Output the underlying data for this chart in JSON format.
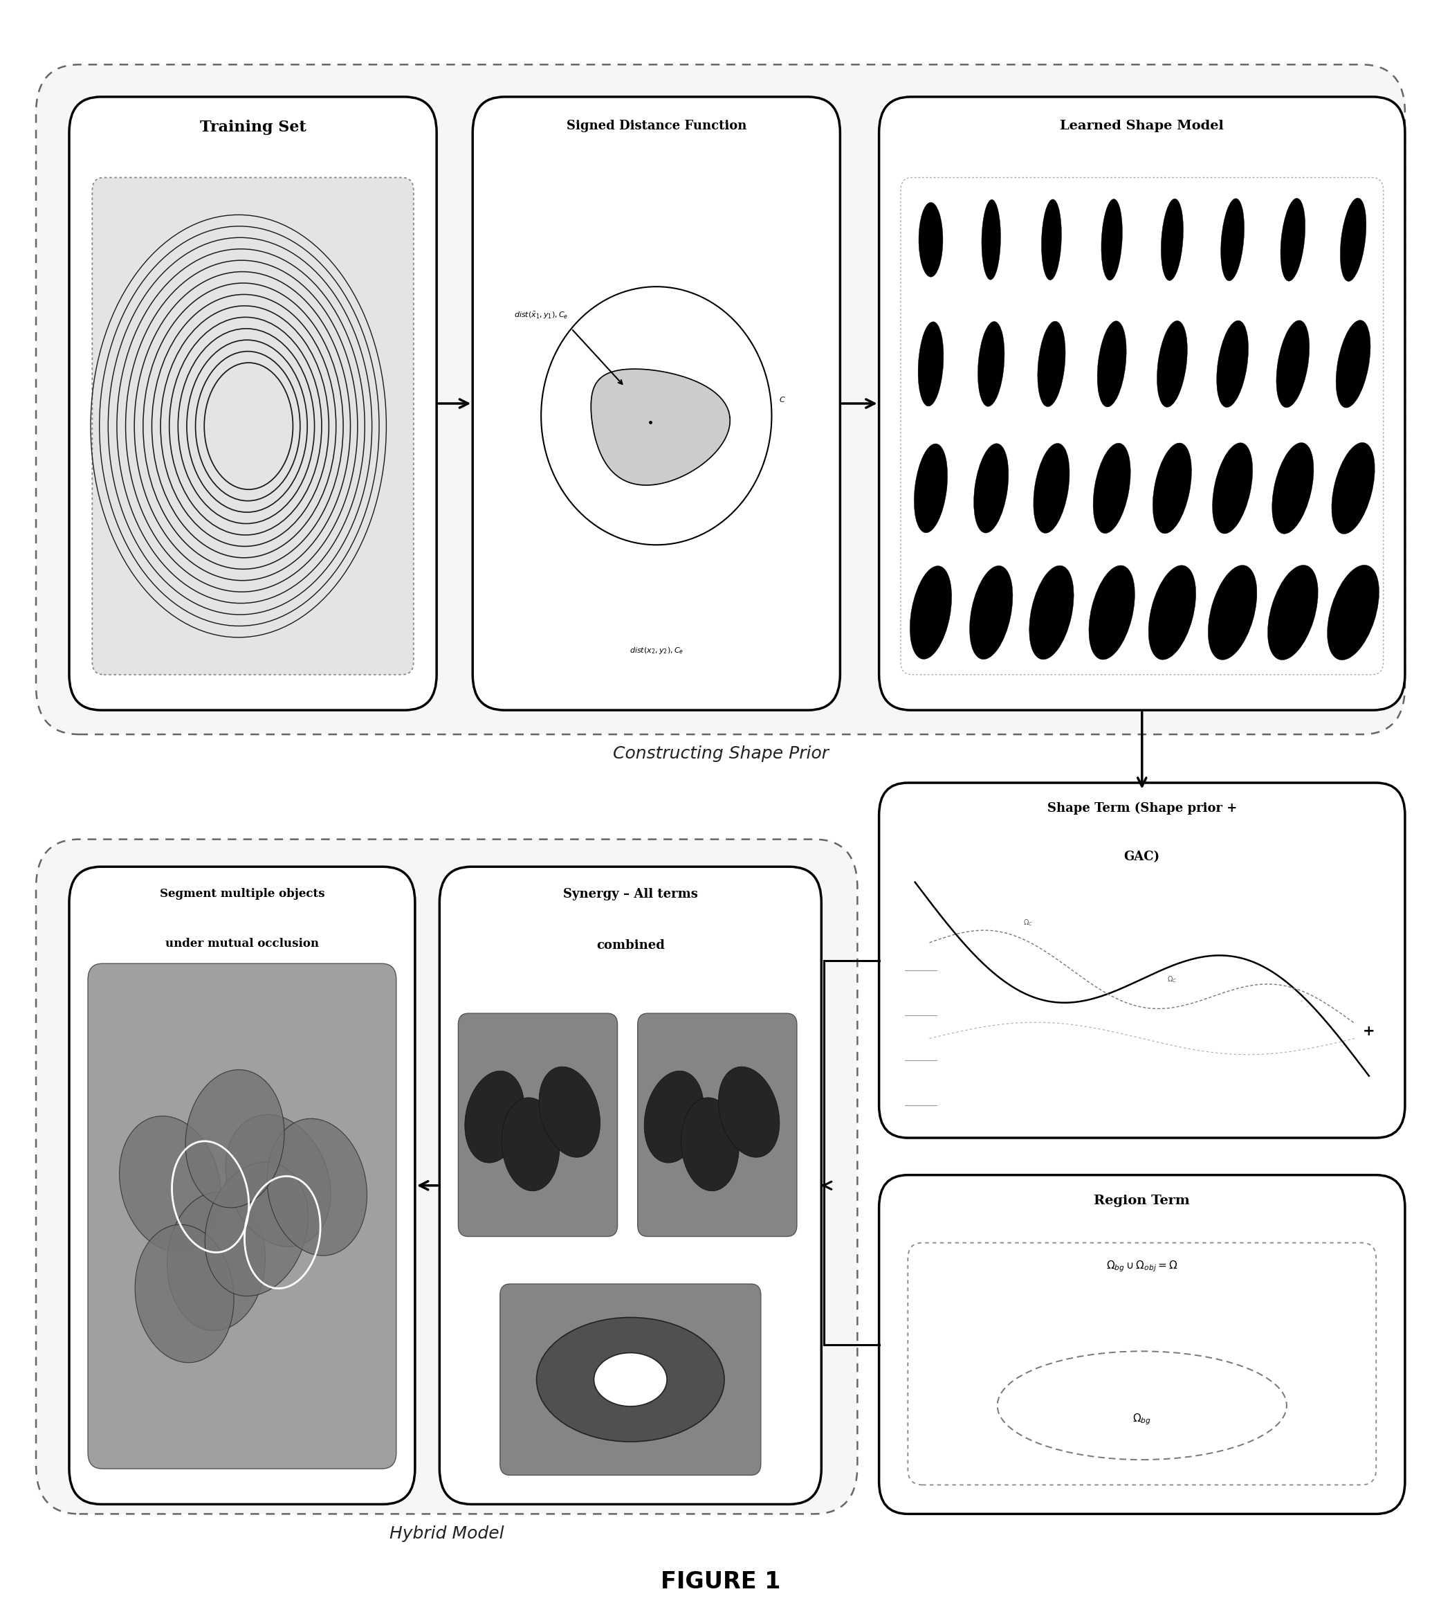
{
  "fig_w": 20.83,
  "fig_h": 23.32,
  "title": "FIGURE 1",
  "label_top": "Constructing Shape Prior",
  "label_bot": "Hybrid Model",
  "t1": "Training Set",
  "t2": "Signed Distance Function",
  "t3": "Learned Shape Model",
  "t4a": "Shape Term (Shape prior +",
  "t4b": "GAC)",
  "t5": "Region Term",
  "t6a": "Synergy – All terms",
  "t6b": "combined",
  "t7a": "Segment multiple objects",
  "t7b": "under mutual occlusion",
  "eq1": "$\\Omega_{bg} \\cup \\Omega_{obj} = \\Omega$",
  "eq2": "$\\Omega_{bg}$"
}
